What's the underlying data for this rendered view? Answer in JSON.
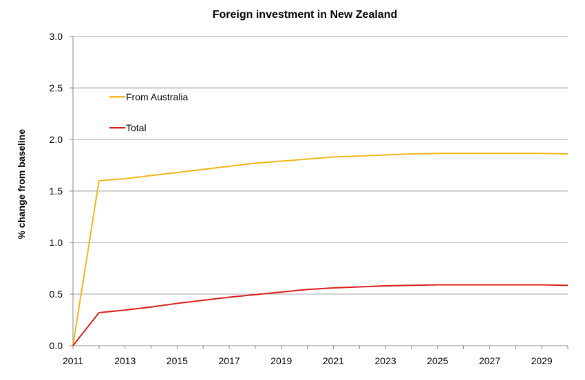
{
  "chart_data": {
    "type": "line",
    "title": "Foreign investment in New Zealand",
    "xlabel": "",
    "ylabel": "% change from baseline",
    "x": [
      2011,
      2012,
      2013,
      2014,
      2015,
      2016,
      2017,
      2018,
      2019,
      2020,
      2021,
      2022,
      2023,
      2024,
      2025,
      2026,
      2027,
      2028,
      2029,
      2030
    ],
    "x_tick_labels": [
      "2011",
      "2013",
      "2015",
      "2017",
      "2019",
      "2021",
      "2023",
      "2025",
      "2027",
      "2029"
    ],
    "y_tick_labels": [
      "0.0",
      "0.5",
      "1.0",
      "1.5",
      "2.0",
      "2.5",
      "3.0"
    ],
    "ylim": [
      0,
      3
    ],
    "xlim": [
      2011,
      2030
    ],
    "grid": "horizontal",
    "legend": "top-left",
    "series": [
      {
        "name": "From Australia",
        "color": "#F2B517",
        "values": [
          0.0,
          1.6,
          1.62,
          1.65,
          1.68,
          1.71,
          1.74,
          1.77,
          1.79,
          1.81,
          1.83,
          1.84,
          1.85,
          1.86,
          1.865,
          1.865,
          1.865,
          1.865,
          1.865,
          1.86
        ]
      },
      {
        "name": "Total",
        "color": "#D91E18",
        "values": [
          0.0,
          0.32,
          0.345,
          0.375,
          0.41,
          0.44,
          0.47,
          0.495,
          0.52,
          0.545,
          0.56,
          0.57,
          0.58,
          0.585,
          0.59,
          0.59,
          0.59,
          0.59,
          0.59,
          0.585
        ]
      }
    ]
  }
}
